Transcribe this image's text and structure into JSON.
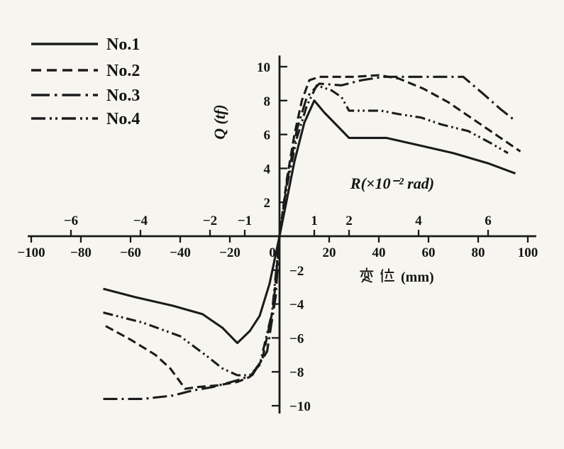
{
  "figure": {
    "background": "#f6f5f0",
    "ink": "#1b1b1b"
  },
  "legend": {
    "position": "top-left",
    "items": [
      {
        "label": "No.1",
        "style": "solid"
      },
      {
        "label": "No.2",
        "style": "dashed"
      },
      {
        "label": "No.3",
        "style": "dash-dot"
      },
      {
        "label": "No.4",
        "style": "dash-dot-dot"
      }
    ]
  },
  "chart_data": {
    "type": "line",
    "title": "",
    "xlabel": "変位 (mm)",
    "ylabel": "Q (tf)",
    "x2label": "R(×10⁻² rad)",
    "xlim": [
      -100,
      100
    ],
    "ylim": [
      -10,
      10
    ],
    "grid": false,
    "legend_position": "top-left",
    "x_ticks_mm": [
      -100,
      -80,
      -60,
      -40,
      -20,
      0,
      20,
      40,
      60,
      80,
      100
    ],
    "r_ticks": [
      -6,
      -4,
      -2,
      -1,
      1,
      2,
      4,
      6
    ],
    "mm_per_r_unit": 14,
    "y_ticks_positive": [
      2,
      4,
      6,
      8,
      10
    ],
    "y_ticks_negative": [
      -2,
      -4,
      -6,
      -8,
      -10
    ],
    "series": [
      {
        "name": "No.1",
        "style": "solid",
        "points": [
          [
            -71,
            -3.1
          ],
          [
            -58,
            -3.6
          ],
          [
            -43,
            -4.1
          ],
          [
            -31,
            -4.6
          ],
          [
            -23,
            -5.4
          ],
          [
            -17,
            -6.3
          ],
          [
            -12,
            -5.6
          ],
          [
            -8,
            -4.7
          ],
          [
            -4,
            -2.8
          ],
          [
            0,
            0
          ],
          [
            3,
            2.2
          ],
          [
            6,
            4.4
          ],
          [
            10,
            6.7
          ],
          [
            14,
            8.0
          ],
          [
            18,
            7.3
          ],
          [
            24,
            6.4
          ],
          [
            28,
            5.8
          ],
          [
            43,
            5.8
          ],
          [
            55,
            5.4
          ],
          [
            70,
            4.9
          ],
          [
            84,
            4.3
          ],
          [
            95,
            3.7
          ]
        ]
      },
      {
        "name": "No.2",
        "style": "dashed",
        "points": [
          [
            -70,
            -5.3
          ],
          [
            -60,
            -6.1
          ],
          [
            -50,
            -7.0
          ],
          [
            -44,
            -7.8
          ],
          [
            -38,
            -9.0
          ],
          [
            -33,
            -8.9
          ],
          [
            -25,
            -8.8
          ],
          [
            -17,
            -8.6
          ],
          [
            -12,
            -8.3
          ],
          [
            -7,
            -7.3
          ],
          [
            -2.5,
            -4.2
          ],
          [
            0,
            0
          ],
          [
            3,
            3.4
          ],
          [
            6,
            6.0
          ],
          [
            9,
            8.0
          ],
          [
            12,
            9.2
          ],
          [
            16,
            9.4
          ],
          [
            30,
            9.4
          ],
          [
            40,
            9.5
          ],
          [
            48,
            9.3
          ],
          [
            58,
            8.7
          ],
          [
            68,
            7.9
          ],
          [
            78,
            6.9
          ],
          [
            88,
            5.9
          ],
          [
            97,
            5.0
          ]
        ]
      },
      {
        "name": "No.3",
        "style": "dash-dot",
        "points": [
          [
            -71,
            -9.6
          ],
          [
            -55,
            -9.6
          ],
          [
            -43,
            -9.4
          ],
          [
            -35,
            -9.1
          ],
          [
            -27,
            -8.9
          ],
          [
            -17,
            -8.5
          ],
          [
            -11,
            -8.2
          ],
          [
            -5,
            -6.8
          ],
          [
            -1.5,
            -3.5
          ],
          [
            0,
            0
          ],
          [
            3,
            3.2
          ],
          [
            7,
            6.3
          ],
          [
            11,
            8.2
          ],
          [
            16,
            9.0
          ],
          [
            25,
            8.9
          ],
          [
            33,
            9.2
          ],
          [
            42,
            9.4
          ],
          [
            60,
            9.4
          ],
          [
            74,
            9.4
          ],
          [
            82,
            8.4
          ],
          [
            89,
            7.5
          ],
          [
            95,
            6.8
          ]
        ]
      },
      {
        "name": "No.4",
        "style": "dash-dot-dot",
        "points": [
          [
            -71,
            -4.5
          ],
          [
            -55,
            -5.1
          ],
          [
            -40,
            -5.9
          ],
          [
            -29,
            -7.1
          ],
          [
            -23,
            -7.8
          ],
          [
            -17,
            -8.2
          ],
          [
            -12,
            -8.2
          ],
          [
            -8,
            -7.6
          ],
          [
            -3,
            -4.5
          ],
          [
            0,
            0
          ],
          [
            3,
            3.0
          ],
          [
            7,
            5.8
          ],
          [
            11,
            7.7
          ],
          [
            15,
            8.9
          ],
          [
            21,
            8.6
          ],
          [
            25,
            8.2
          ],
          [
            28,
            7.4
          ],
          [
            41,
            7.4
          ],
          [
            48,
            7.2
          ],
          [
            57,
            7.0
          ],
          [
            65,
            6.6
          ],
          [
            76,
            6.2
          ],
          [
            85,
            5.5
          ],
          [
            92,
            4.9
          ]
        ]
      }
    ]
  }
}
